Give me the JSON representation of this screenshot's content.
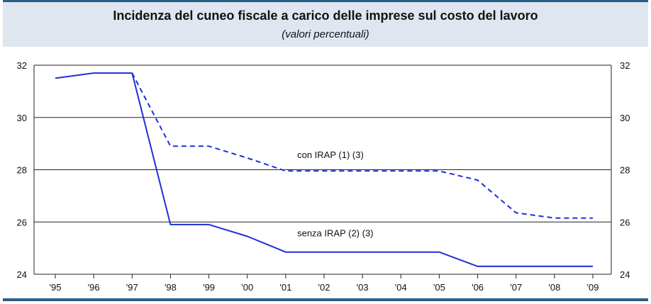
{
  "chart_data": {
    "type": "line",
    "title": "Incidenza del cuneo fiscale a carico delle imprese sul costo del lavoro",
    "subtitle": "(valori percentuali)",
    "categories": [
      "'95",
      "'96",
      "'97",
      "'98",
      "'99",
      "'00",
      "'01",
      "'02",
      "'03",
      "'04",
      "'05",
      "'06",
      "'07",
      "'08",
      "'09"
    ],
    "ylim": [
      24,
      32
    ],
    "yticks": [
      24,
      26,
      28,
      30,
      32
    ],
    "grid": true,
    "series": [
      {
        "name": "con IRAP (1) (3)",
        "style": "dashed",
        "color": "#1f2fd6",
        "values": [
          null,
          null,
          31.7,
          28.9,
          28.9,
          28.45,
          27.95,
          27.95,
          27.95,
          27.95,
          27.95,
          27.6,
          26.35,
          26.15,
          26.15
        ]
      },
      {
        "name": "senza IRAP (2) (3)",
        "style": "solid",
        "color": "#1f2fd6",
        "values": [
          31.5,
          31.7,
          31.7,
          25.9,
          25.9,
          25.45,
          24.85,
          24.85,
          24.85,
          24.85,
          24.85,
          24.3,
          24.3,
          24.3,
          24.3
        ]
      }
    ]
  }
}
